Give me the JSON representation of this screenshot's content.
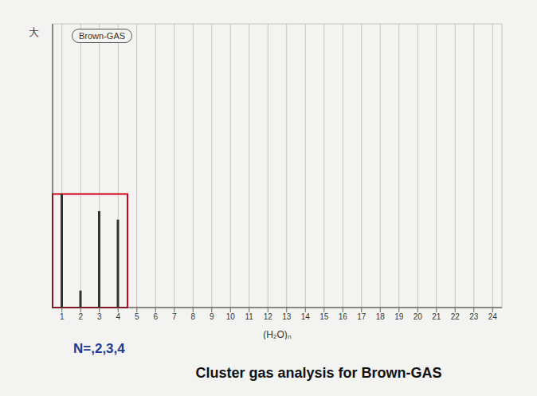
{
  "chart_data": {
    "type": "bar",
    "title": "Cluster gas analysis for Brown-GAS",
    "subtitle": "Brown-GAS",
    "x_label": "(H₂O)ₙ",
    "y_label": "大",
    "annotations": [
      {
        "text": "N=,2,3,4",
        "color": "#1f3a93"
      }
    ],
    "categories": [
      "1",
      "2",
      "3",
      "4",
      "5",
      "6",
      "7",
      "8",
      "9",
      "10",
      "11",
      "12",
      "13",
      "14",
      "15",
      "16",
      "17",
      "18",
      "19",
      "20",
      "21",
      "22",
      "23",
      "24"
    ],
    "values": [
      40,
      6,
      34,
      31,
      0,
      0,
      0,
      0,
      0,
      0,
      0,
      0,
      0,
      0,
      0,
      0,
      0,
      0,
      0,
      0,
      0,
      0,
      0,
      0
    ],
    "color": "#333333",
    "ylim": [
      0,
      100
    ],
    "yticks": [
      0,
      10,
      20,
      30,
      40,
      50,
      60,
      70,
      80,
      90,
      100
    ],
    "grid": true,
    "tick_labels": "x"
  }
}
